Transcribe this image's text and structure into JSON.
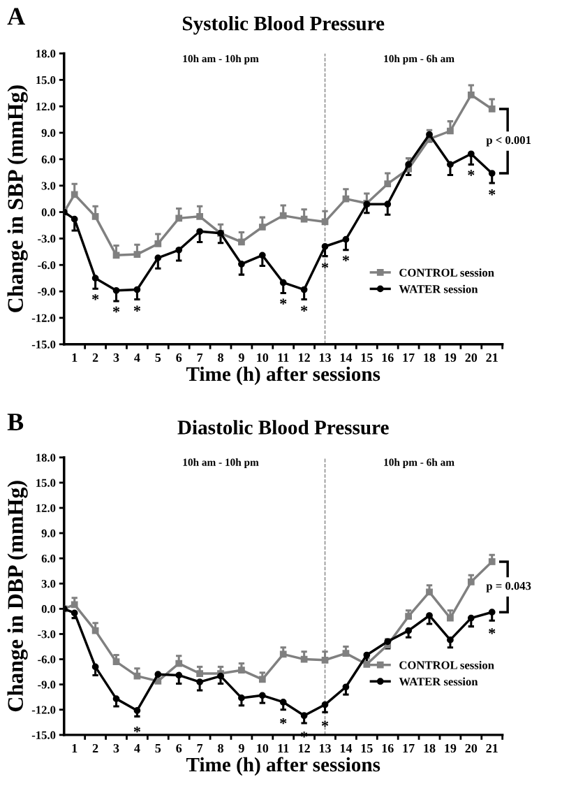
{
  "chart_data": [
    {
      "type": "line",
      "title": "Systolic Blood Pressure",
      "xlabel": "Time (h) after sessions",
      "ylabel": "Change in SBP (mmHg)",
      "annotations": [
        "A",
        "10h am - 10h pm",
        "10h pm - 6h am",
        "p < 0.001",
        {
          "text": "*",
          "x": 2,
          "y": -7.5
        },
        {
          "text": "*",
          "x": 3,
          "y": -8.9
        },
        {
          "text": "*",
          "x": 4,
          "y": -8.8
        },
        {
          "text": "*",
          "x": 11,
          "y": -8.0
        },
        {
          "text": "*",
          "x": 12,
          "y": -8.8
        },
        {
          "text": "*",
          "x": 13,
          "y": -3.9
        },
        {
          "text": "*",
          "x": 14,
          "y": -3.1
        },
        {
          "text": "*",
          "x": 20,
          "y": 6.6
        },
        {
          "text": "*",
          "x": 21,
          "y": 4.4
        }
      ],
      "x": [
        0.5,
        1,
        2,
        3,
        4,
        5,
        6,
        7,
        8,
        9,
        10,
        11,
        12,
        13,
        14,
        15,
        16,
        17,
        18,
        19,
        20,
        21
      ],
      "xlim": [
        0.5,
        21.5
      ],
      "xticks": [
        {
          "value": 1,
          "label": "1"
        },
        {
          "value": 2,
          "label": "2"
        },
        {
          "value": 3,
          "label": "3"
        },
        {
          "value": 4,
          "label": "4"
        },
        {
          "value": 5,
          "label": "5"
        },
        {
          "value": 6,
          "label": "6"
        },
        {
          "value": 7,
          "label": "7"
        },
        {
          "value": 8,
          "label": "8"
        },
        {
          "value": 9,
          "label": "9"
        },
        {
          "value": 10,
          "label": "10"
        },
        {
          "value": 11,
          "label": "11"
        },
        {
          "value": 12,
          "label": "12"
        },
        {
          "value": 13,
          "label": "13"
        },
        {
          "value": 14,
          "label": "14"
        },
        {
          "value": 15,
          "label": "15"
        },
        {
          "value": 16,
          "label": "16"
        },
        {
          "value": 17,
          "label": "17"
        },
        {
          "value": 18,
          "label": "18"
        },
        {
          "value": 19,
          "label": "19"
        },
        {
          "value": 20,
          "label": "20"
        },
        {
          "value": 21,
          "label": "21"
        },
        {
          "value": 1.5,
          "label": null
        },
        {
          "value": 2.5,
          "label": null
        },
        {
          "value": 3.5,
          "label": null
        },
        {
          "value": 4.5,
          "label": null
        },
        {
          "value": 5.5,
          "label": null
        },
        {
          "value": 6.5,
          "label": null
        },
        {
          "value": 7.5,
          "label": null
        },
        {
          "value": 8.5,
          "label": null
        },
        {
          "value": 9.5,
          "label": null
        },
        {
          "value": 10.5,
          "label": null
        },
        {
          "value": 11.5,
          "label": null
        },
        {
          "value": 12.5,
          "label": null
        },
        {
          "value": 13.5,
          "label": null
        },
        {
          "value": 14.5,
          "label": null
        },
        {
          "value": 15.5,
          "label": null
        },
        {
          "value": 16.5,
          "label": null
        },
        {
          "value": 17.5,
          "label": null
        },
        {
          "value": 18.5,
          "label": null
        },
        {
          "value": 19.5,
          "label": null
        },
        {
          "value": 20.5,
          "label": null
        },
        {
          "value": 21.5,
          "label": null
        }
      ],
      "ylim": [
        -15,
        18
      ],
      "yticks": [
        {
          "value": -15,
          "label": "-15.0"
        },
        {
          "value": -12,
          "label": "-12.0"
        },
        {
          "value": -9,
          "label": "-9.0"
        },
        {
          "value": -6,
          "label": "-6.0"
        },
        {
          "value": -3,
          "label": "-3.0"
        },
        {
          "value": 0,
          "label": "0.0"
        },
        {
          "value": 3,
          "label": "3.0"
        },
        {
          "value": 6,
          "label": "6.0"
        },
        {
          "value": 9,
          "label": "9.0"
        },
        {
          "value": 12,
          "label": "12.0"
        },
        {
          "value": 15,
          "label": "15.0"
        },
        {
          "value": 18,
          "label": "18.0"
        }
      ],
      "series": [
        {
          "name": "CONTROL session",
          "color": "#808080",
          "marker": "square",
          "values": [
            0,
            2.0,
            -0.5,
            -4.9,
            -4.8,
            -3.6,
            -0.7,
            -0.5,
            -2.4,
            -3.4,
            -1.7,
            -0.4,
            -0.8,
            -1.1,
            1.5,
            1.0,
            3.2,
            4.9,
            8.3,
            9.2,
            13.3,
            11.7
          ],
          "errors": [
            null,
            [
              2.0,
              3.2
            ],
            [
              -0.5,
              0.65
            ],
            [
              -4.9,
              -3.8
            ],
            [
              -4.8,
              -3.7
            ],
            [
              -3.6,
              -2.5
            ],
            [
              -0.7,
              0.4
            ],
            [
              -0.5,
              0.65
            ],
            [
              -2.4,
              -1.4
            ],
            [
              -3.4,
              -2.3
            ],
            [
              -1.7,
              -0.6
            ],
            [
              -0.4,
              0.75
            ],
            [
              -0.8,
              0.3
            ],
            [
              -1.1,
              0.1
            ],
            [
              1.5,
              2.6
            ],
            [
              1.0,
              2.1
            ],
            [
              3.2,
              4.4
            ],
            [
              4.9,
              6.1
            ],
            [
              8.3,
              9.3
            ],
            [
              9.2,
              10.3
            ],
            [
              13.3,
              14.4
            ],
            [
              11.7,
              12.8
            ]
          ]
        },
        {
          "name": "WATER session",
          "color": "#000000",
          "marker": "circle",
          "values": [
            0,
            -0.8,
            -7.5,
            -8.9,
            -8.8,
            -5.2,
            -4.3,
            -2.2,
            -2.4,
            -5.9,
            -4.9,
            -8.0,
            -8.8,
            -3.9,
            -3.1,
            0.9,
            0.9,
            5.4,
            8.8,
            5.4,
            6.6,
            4.4
          ],
          "errors": [
            null,
            [
              -2.1,
              -0.8
            ],
            [
              -8.7,
              -7.5
            ],
            [
              -10.1,
              -8.9
            ],
            [
              -9.9,
              -8.8
            ],
            [
              -6.4,
              -5.2
            ],
            [
              -5.5,
              -4.3
            ],
            [
              -3.4,
              -2.2
            ],
            [
              -3.5,
              -2.4
            ],
            [
              -7.1,
              -5.9
            ],
            [
              -6.1,
              -4.9
            ],
            [
              -9.2,
              -8.0
            ],
            [
              -9.9,
              -8.8
            ],
            [
              -5.0,
              -3.9
            ],
            [
              -4.3,
              -3.1
            ],
            [
              -0.1,
              0.9
            ],
            [
              -0.3,
              0.9
            ],
            [
              4.2,
              5.4
            ],
            [
              8.0,
              8.8
            ],
            [
              4.2,
              5.4
            ],
            [
              5.4,
              6.6
            ],
            [
              3.3,
              4.4
            ]
          ]
        }
      ],
      "ref_lines": [
        {
          "axis": "x",
          "value": 13,
          "color": "#808080",
          "line_style": "dashed"
        }
      ],
      "legend": "bottom right",
      "line_style": "solid"
    },
    {
      "type": "line",
      "title": "Diastolic Blood Pressure",
      "xlabel": "Time (h) after sessions",
      "ylabel": "Change in DBP (mmHg)",
      "annotations": [
        "B",
        "10h am - 10h pm",
        "10h pm - 6h am",
        "p = 0.043",
        {
          "text": "*",
          "x": 4,
          "y": -12.1
        },
        {
          "text": "*",
          "x": 11,
          "y": -11.1
        },
        {
          "text": "*",
          "x": 12,
          "y": -12.7
        },
        {
          "text": "*",
          "x": 13,
          "y": -11.4
        },
        {
          "text": "*",
          "x": 21,
          "y": -0.4
        }
      ],
      "x": [
        0.5,
        1,
        2,
        3,
        4,
        5,
        6,
        7,
        8,
        9,
        10,
        11,
        12,
        13,
        14,
        15,
        16,
        17,
        18,
        19,
        20,
        21
      ],
      "xlim": [
        0.5,
        21.5
      ],
      "xticks": [
        {
          "value": 1,
          "label": "1"
        },
        {
          "value": 2,
          "label": "2"
        },
        {
          "value": 3,
          "label": "3"
        },
        {
          "value": 4,
          "label": "4"
        },
        {
          "value": 5,
          "label": "5"
        },
        {
          "value": 6,
          "label": "6"
        },
        {
          "value": 7,
          "label": "7"
        },
        {
          "value": 8,
          "label": "8"
        },
        {
          "value": 9,
          "label": "9"
        },
        {
          "value": 10,
          "label": "10"
        },
        {
          "value": 11,
          "label": "11"
        },
        {
          "value": 12,
          "label": "12"
        },
        {
          "value": 13,
          "label": "13"
        },
        {
          "value": 14,
          "label": "14"
        },
        {
          "value": 15,
          "label": "15"
        },
        {
          "value": 16,
          "label": "16"
        },
        {
          "value": 17,
          "label": "17"
        },
        {
          "value": 18,
          "label": "18"
        },
        {
          "value": 19,
          "label": "19"
        },
        {
          "value": 20,
          "label": "20"
        },
        {
          "value": 21,
          "label": "21"
        },
        {
          "value": 1.5,
          "label": null
        },
        {
          "value": 2.5,
          "label": null
        },
        {
          "value": 3.5,
          "label": null
        },
        {
          "value": 4.5,
          "label": null
        },
        {
          "value": 5.5,
          "label": null
        },
        {
          "value": 6.5,
          "label": null
        },
        {
          "value": 7.5,
          "label": null
        },
        {
          "value": 8.5,
          "label": null
        },
        {
          "value": 9.5,
          "label": null
        },
        {
          "value": 10.5,
          "label": null
        },
        {
          "value": 11.5,
          "label": null
        },
        {
          "value": 12.5,
          "label": null
        },
        {
          "value": 13.5,
          "label": null
        },
        {
          "value": 14.5,
          "label": null
        },
        {
          "value": 15.5,
          "label": null
        },
        {
          "value": 16.5,
          "label": null
        },
        {
          "value": 17.5,
          "label": null
        },
        {
          "value": 18.5,
          "label": null
        },
        {
          "value": 19.5,
          "label": null
        },
        {
          "value": 20.5,
          "label": null
        },
        {
          "value": 21.5,
          "label": null
        }
      ],
      "ylim": [
        -15,
        18
      ],
      "yticks": [
        {
          "value": -15,
          "label": "-15.0"
        },
        {
          "value": -12,
          "label": "-12.0"
        },
        {
          "value": -9,
          "label": "-9.0"
        },
        {
          "value": -6,
          "label": "-6.0"
        },
        {
          "value": -3,
          "label": "-3.0"
        },
        {
          "value": 0,
          "label": "0.0"
        },
        {
          "value": 3,
          "label": "3.0"
        },
        {
          "value": 6,
          "label": "6.0"
        },
        {
          "value": 9,
          "label": "9.0"
        },
        {
          "value": 12,
          "label": "12.0"
        },
        {
          "value": 15,
          "label": "15.0"
        },
        {
          "value": 18,
          "label": "18.0"
        }
      ],
      "series": [
        {
          "name": "CONTROL session",
          "color": "#808080",
          "marker": "square",
          "values": [
            0,
            0.5,
            -2.6,
            -6.3,
            -8.0,
            -8.6,
            -6.5,
            -7.7,
            -7.7,
            -7.3,
            -8.4,
            -5.4,
            -6.0,
            -6.1,
            -5.3,
            -6.6,
            -4.3,
            -0.9,
            2.0,
            -1.1,
            3.2,
            5.6
          ],
          "errors": [
            null,
            [
              0.5,
              1.3
            ],
            [
              -2.6,
              -1.7
            ],
            [
              -6.3,
              -5.5
            ],
            [
              -8.0,
              -7.1
            ],
            [
              -8.6,
              -7.8
            ],
            [
              -6.5,
              -5.6
            ],
            [
              -7.7,
              -6.9
            ],
            [
              -7.7,
              -6.9
            ],
            [
              -7.3,
              -6.5
            ],
            [
              -8.4,
              -7.6
            ],
            [
              -5.4,
              -4.6
            ],
            [
              -6.0,
              -5.1
            ],
            [
              -6.1,
              -5.1
            ],
            [
              -5.3,
              -4.5
            ],
            [
              -6.6,
              -5.9
            ],
            [
              -4.3,
              -3.6
            ],
            [
              -0.9,
              -0.2
            ],
            [
              2.0,
              2.8
            ],
            [
              -1.1,
              -0.2
            ],
            [
              3.2,
              4.0
            ],
            [
              5.6,
              6.4
            ]
          ]
        },
        {
          "name": "WATER session",
          "color": "#000000",
          "marker": "circle",
          "values": [
            0,
            -0.5,
            -6.9,
            -10.7,
            -12.1,
            -7.8,
            -7.9,
            -8.7,
            -8.0,
            -10.6,
            -10.3,
            -11.1,
            -12.7,
            -11.4,
            -9.3,
            -5.5,
            -3.9,
            -2.6,
            -0.8,
            -3.7,
            -1.1,
            -0.4
          ],
          "errors": [
            null,
            [
              -1.1,
              -0.5
            ],
            [
              -7.9,
              -6.9
            ],
            [
              -11.6,
              -10.7
            ],
            [
              -12.8,
              -12.1
            ],
            [
              -7.9,
              -7.8
            ],
            [
              -8.9,
              -7.9
            ],
            [
              -9.7,
              -8.7
            ],
            [
              -8.9,
              -8.0
            ],
            [
              -11.5,
              -10.6
            ],
            [
              -11.2,
              -10.3
            ],
            [
              -12.0,
              -11.1
            ],
            [
              -13.6,
              -12.7
            ],
            [
              -12.3,
              -11.4
            ],
            [
              -10.2,
              -9.3
            ],
            [
              -6.3,
              -5.5
            ],
            [
              -4.7,
              -3.9
            ],
            [
              -3.4,
              -2.6
            ],
            [
              -1.8,
              -0.8
            ],
            [
              -4.6,
              -3.7
            ],
            [
              -2.1,
              -1.1
            ],
            [
              -1.4,
              -0.4
            ]
          ]
        }
      ],
      "ref_lines": [
        {
          "axis": "x",
          "value": 13,
          "color": "#808080",
          "line_style": "dashed"
        }
      ],
      "legend": "bottom right",
      "line_style": "solid"
    }
  ]
}
